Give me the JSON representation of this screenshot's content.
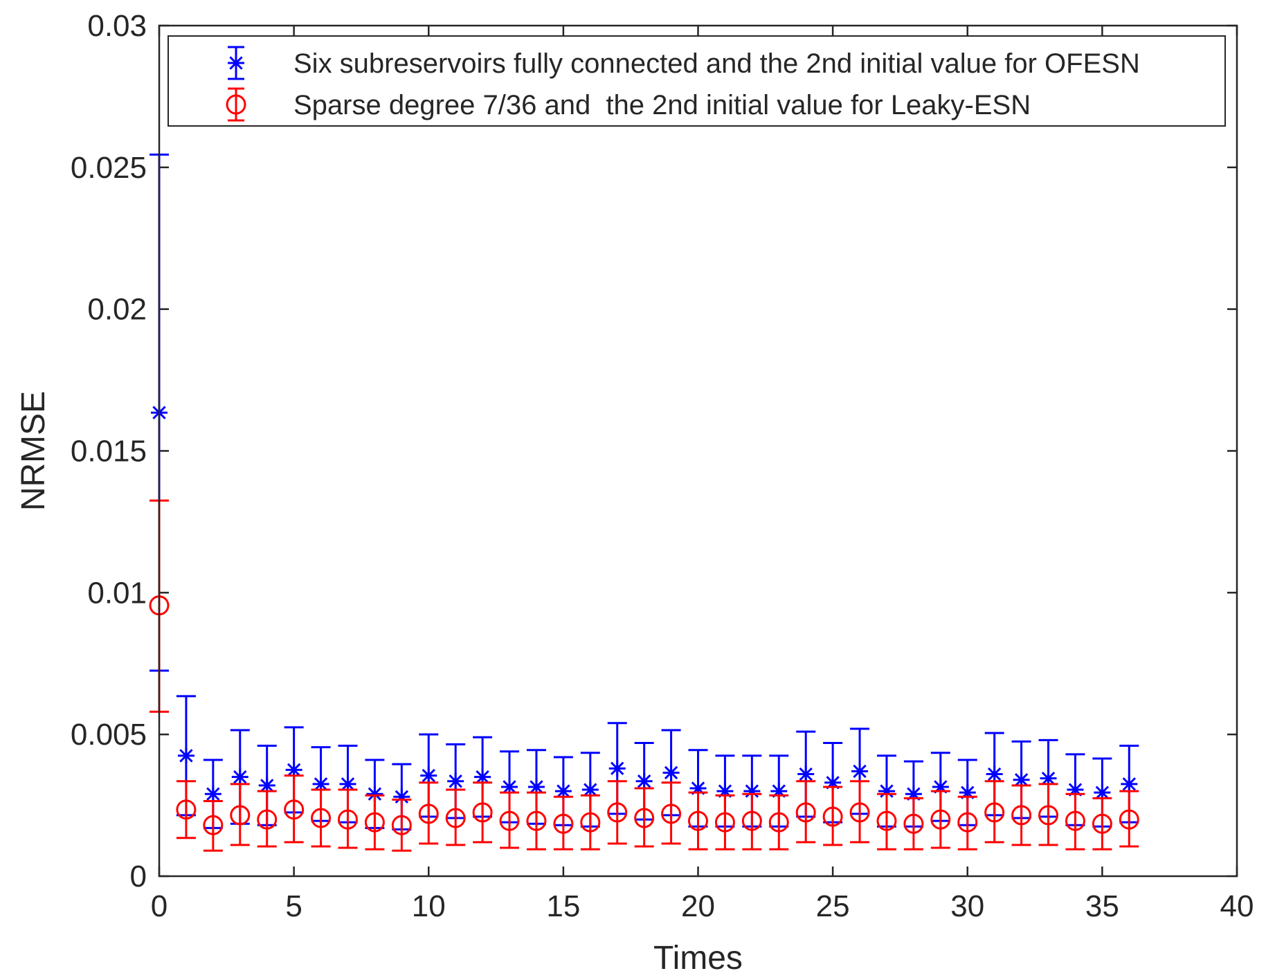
{
  "chart_data": {
    "type": "scatter",
    "title": "",
    "xlabel": "Times",
    "ylabel": "NRMSE",
    "xlim": [
      0,
      40
    ],
    "ylim": [
      0,
      0.03
    ],
    "xticks": [
      "0",
      "5",
      "10",
      "15",
      "20",
      "25",
      "30",
      "35",
      "40"
    ],
    "yticks": [
      "0",
      "0.005",
      "0.01",
      "0.015",
      "0.02",
      "0.025",
      "0.03"
    ],
    "grid": false,
    "legend_position": "top",
    "series": [
      {
        "name": "Six subreservoirs fully connected and the 2nd initial value for OFESN",
        "color": "#0000ff",
        "marker": "asterisk",
        "x": [
          0,
          1,
          2,
          3,
          4,
          5,
          6,
          7,
          8,
          9,
          10,
          11,
          12,
          13,
          14,
          15,
          16,
          17,
          18,
          19,
          20,
          21,
          22,
          23,
          24,
          25,
          26,
          27,
          28,
          29,
          30,
          31,
          32,
          33,
          34,
          35,
          36
        ],
        "values": [
          0.01635,
          0.00425,
          0.0029,
          0.0035,
          0.0032,
          0.00375,
          0.00325,
          0.00325,
          0.0029,
          0.0028,
          0.00355,
          0.00335,
          0.0035,
          0.00315,
          0.00315,
          0.003,
          0.00305,
          0.0038,
          0.00335,
          0.00365,
          0.0031,
          0.003,
          0.003,
          0.003,
          0.0036,
          0.0033,
          0.0037,
          0.003,
          0.0029,
          0.00315,
          0.00295,
          0.0036,
          0.0034,
          0.00345,
          0.00305,
          0.00295,
          0.00325
        ],
        "upper": [
          0.02545,
          0.00635,
          0.0041,
          0.00515,
          0.0046,
          0.00525,
          0.00455,
          0.0046,
          0.0041,
          0.00395,
          0.005,
          0.00465,
          0.0049,
          0.0044,
          0.00445,
          0.0042,
          0.00435,
          0.0054,
          0.0047,
          0.00515,
          0.00445,
          0.00425,
          0.00425,
          0.00425,
          0.0051,
          0.0047,
          0.0052,
          0.00425,
          0.00405,
          0.00435,
          0.0041,
          0.00505,
          0.00475,
          0.0048,
          0.0043,
          0.00415,
          0.0046
        ],
        "lower": [
          0.00725,
          0.00215,
          0.0017,
          0.00185,
          0.0018,
          0.00225,
          0.00195,
          0.0019,
          0.0017,
          0.00165,
          0.0021,
          0.00205,
          0.0021,
          0.0019,
          0.00185,
          0.0018,
          0.00175,
          0.0022,
          0.002,
          0.00215,
          0.00175,
          0.00175,
          0.00175,
          0.00175,
          0.0021,
          0.0019,
          0.0022,
          0.00175,
          0.00175,
          0.00195,
          0.0018,
          0.00215,
          0.00205,
          0.0021,
          0.0018,
          0.00175,
          0.0019
        ]
      },
      {
        "name": "Sparse degree 7/36 and  the 2nd initial value for Leaky-ESN",
        "color": "#ff0000",
        "marker": "circle",
        "x": [
          0,
          1,
          2,
          3,
          4,
          5,
          6,
          7,
          8,
          9,
          10,
          11,
          12,
          13,
          14,
          15,
          16,
          17,
          18,
          19,
          20,
          21,
          22,
          23,
          24,
          25,
          26,
          27,
          28,
          29,
          30,
          31,
          32,
          33,
          34,
          35,
          36
        ],
        "values": [
          0.00955,
          0.00235,
          0.0018,
          0.00215,
          0.002,
          0.00235,
          0.00205,
          0.002,
          0.0019,
          0.0018,
          0.0022,
          0.00205,
          0.00225,
          0.00195,
          0.00195,
          0.00185,
          0.0019,
          0.00225,
          0.00205,
          0.0022,
          0.00195,
          0.0019,
          0.00195,
          0.0019,
          0.00225,
          0.0021,
          0.00225,
          0.00195,
          0.00185,
          0.002,
          0.0019,
          0.00225,
          0.00215,
          0.00215,
          0.00195,
          0.00185,
          0.002
        ],
        "upper": [
          0.01325,
          0.00335,
          0.00265,
          0.00325,
          0.003,
          0.00355,
          0.00305,
          0.00305,
          0.00285,
          0.0027,
          0.0033,
          0.00305,
          0.0033,
          0.00295,
          0.00295,
          0.0028,
          0.00285,
          0.00335,
          0.0031,
          0.0033,
          0.00295,
          0.00285,
          0.0029,
          0.00285,
          0.00335,
          0.00315,
          0.00335,
          0.0029,
          0.00275,
          0.003,
          0.0028,
          0.00335,
          0.0032,
          0.00325,
          0.0029,
          0.00275,
          0.003
        ],
        "lower": [
          0.0058,
          0.00135,
          0.0009,
          0.0011,
          0.00105,
          0.0012,
          0.00105,
          0.001,
          0.00095,
          0.0009,
          0.00115,
          0.0011,
          0.0012,
          0.001,
          0.00095,
          0.00095,
          0.00095,
          0.00115,
          0.00105,
          0.00115,
          0.00095,
          0.00095,
          0.00095,
          0.00095,
          0.0012,
          0.0011,
          0.0012,
          0.00095,
          0.00095,
          0.001,
          0.00095,
          0.0012,
          0.0011,
          0.0011,
          0.00095,
          0.00095,
          0.00105
        ]
      }
    ]
  }
}
